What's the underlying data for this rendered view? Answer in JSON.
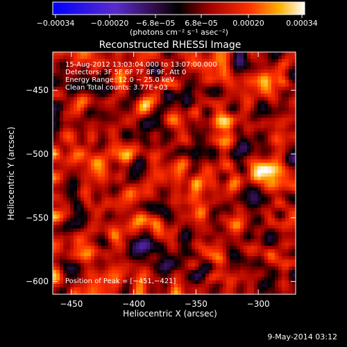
{
  "colorbar": {
    "tick_labels": [
      "−0.00034",
      "−0.00020",
      "−6.8e−05",
      "6.8e−05",
      "0.00020",
      "0.00034"
    ],
    "unit_label": "(photons cm⁻² s⁻¹ asec⁻²)",
    "range": [
      -0.00034,
      0.00034
    ]
  },
  "chart_data": {
    "type": "heatmap",
    "title": "Reconstructed RHESSI Image",
    "xlabel": "Heliocentric X (arcsec)",
    "ylabel": "Heliocentric Y (arcsec)",
    "xlim": [
      -465,
      -270
    ],
    "ylim": [
      -610,
      -420
    ],
    "x_ticks": [
      -450,
      -400,
      -350,
      -300
    ],
    "y_ticks": [
      -450,
      -500,
      -550,
      -600
    ],
    "x_tick_labels": [
      "−450",
      "−400",
      "−350",
      "−300"
    ],
    "y_tick_labels": [
      "−450",
      "−500",
      "−550",
      "−600"
    ],
    "info_lines": [
      "15-Aug-2012 13:03:04.000 to 13:07:00.000",
      "Detectors: 3F 5F 6F 7F 8F 9F, Att 0",
      "Energy Range: 12.0 − 25.0 keV",
      "Clean     Total counts: 3.77E+03"
    ],
    "peak_label": "Position of Peak = [−451,−421]",
    "peak_position": [
      -451,
      -421
    ],
    "colormap": [
      "#0000ff",
      "#5a2ccc",
      "#3c0a46",
      "#000000",
      "#8a0000",
      "#ff2a00",
      "#ffaa00",
      "#ffffff"
    ]
  },
  "footer": {
    "date": "9-May-2014 03:12"
  }
}
